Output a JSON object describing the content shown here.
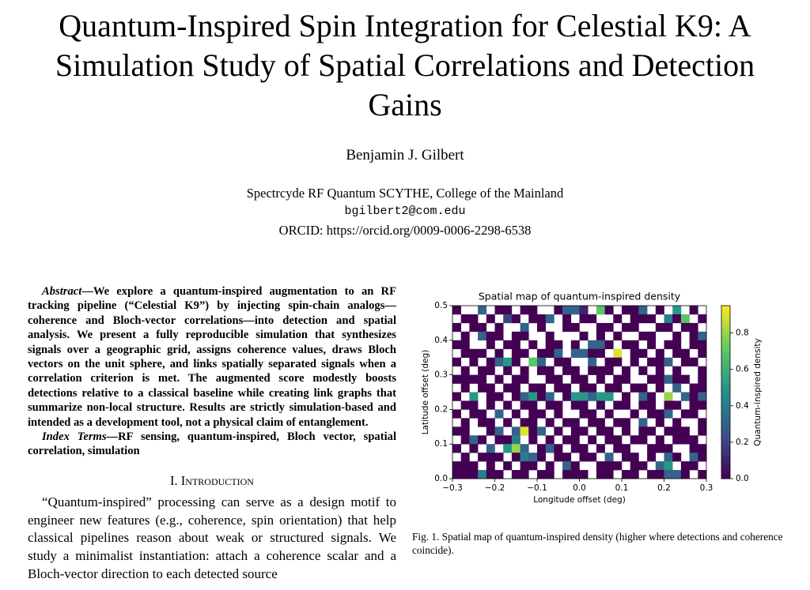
{
  "header": {
    "title": "Quantum-Inspired Spin Integration for Celestial K9: A Simulation Study of Spatial Correlations and Detection Gains",
    "author": "Benjamin J. Gilbert",
    "affiliation": "Spectrcyde RF Quantum SCYTHE, College of the Mainland",
    "email": "bgilbert2@com.edu",
    "orcid": "ORCID: https://orcid.org/0009-0006-2298-6538"
  },
  "abstract": {
    "label": "Abstract",
    "text": "—We explore a quantum-inspired augmentation to an RF tracking pipeline (“Celestial K9”) by injecting spin-chain analogs—coherence and Bloch-vector correlations—into detection and spatial analysis. We present a fully reproducible simulation that synthesizes signals over a geographic grid, assigns coherence values, draws Bloch vectors on the unit sphere, and links spatially separated signals when a correlation criterion is met. The augmented score modestly boosts detections relative to a classical baseline while creating link graphs that summarize non-local structure. Results are strictly simulation-based and intended as a development tool, not a physical claim of entanglement."
  },
  "index_terms": {
    "label": "Index Terms",
    "text": "—RF sensing, quantum-inspired, Bloch vector, spatial correlation, simulation"
  },
  "section": {
    "number": "I.",
    "title": "Introduction"
  },
  "body": "“Quantum-inspired” processing can serve as a design motif to engineer new features (e.g., coherence, spin orientation) that help classical pipelines reason about weak or structured signals. We study a minimalist instantiation: attach a coherence scalar and a Bloch-vector direction to each detected source",
  "chart_data": {
    "type": "heatmap",
    "title": "Spatial map of quantum-inspired density",
    "x_label": "Longitude offset (deg)",
    "y_label": "Latitude offset (deg)",
    "xlim": [
      -0.3,
      0.3
    ],
    "ylim": [
      0,
      0.5
    ],
    "xticks": [
      {
        "value": -0.3,
        "label": "−0.3"
      },
      {
        "value": -0.2,
        "label": "−0.2"
      },
      {
        "value": -0.1,
        "label": "−0.1"
      },
      {
        "value": 0,
        "label": "0.0"
      },
      0.1,
      0.2,
      0.3
    ],
    "yticks": [
      {
        "value": 0,
        "label": "0.0"
      },
      0.1,
      0.2,
      0.3,
      0.4,
      0.5
    ],
    "colormap": "viridis",
    "colorbar_label": "Quantum-inspired density",
    "clim": [
      0,
      0.95
    ],
    "cticks": [
      {
        "value": 0,
        "label": "0.0"
      },
      0.2,
      0.4,
      0.6,
      0.8
    ],
    "values": [
      [
        0,
        null,
        null,
        0.3,
        null,
        0,
        0,
        null,
        0,
        0,
        null,
        null,
        0,
        0.3,
        0.3,
        0.1,
        null,
        0.7,
        0,
        null,
        0,
        0,
        0.3,
        null,
        0,
        null,
        0.5,
        null,
        0,
        null
      ],
      [
        null,
        0,
        0,
        null,
        0,
        null,
        0.2,
        0,
        null,
        0,
        0,
        0.3,
        null,
        0,
        null,
        0,
        0,
        null,
        null,
        0,
        null,
        0,
        0,
        0,
        null,
        0.4,
        0,
        0.7,
        null,
        0
      ],
      [
        0,
        null,
        0,
        0,
        null,
        0,
        null,
        null,
        0.3,
        null,
        0,
        null,
        null,
        0,
        0,
        null,
        null,
        0,
        0,
        null,
        0,
        0,
        null,
        null,
        0,
        0,
        null,
        0,
        0,
        null
      ],
      [
        null,
        0,
        null,
        0.3,
        0,
        0,
        null,
        0,
        0,
        null,
        null,
        0,
        null,
        null,
        null,
        0,
        null,
        0,
        null,
        0,
        null,
        null,
        0,
        0,
        null,
        null,
        0,
        null,
        0,
        0.3
      ],
      [
        0,
        0,
        null,
        null,
        0,
        null,
        0,
        0,
        null,
        0,
        null,
        0,
        0,
        null,
        0,
        null,
        0.3,
        0.3,
        0,
        null,
        0,
        0,
        null,
        0,
        null,
        0,
        0,
        null,
        0,
        0
      ],
      [
        null,
        0,
        0,
        0,
        null,
        0,
        null,
        0,
        0,
        null,
        0,
        0,
        0.3,
        null,
        0.3,
        0.3,
        0,
        0,
        null,
        0.9,
        null,
        0,
        0,
        null,
        0,
        null,
        0,
        0,
        null,
        0
      ],
      [
        0,
        null,
        0,
        null,
        0,
        0.3,
        0.5,
        0,
        null,
        0.7,
        0.3,
        null,
        0,
        0,
        null,
        null,
        0.3,
        null,
        0,
        0,
        null,
        0,
        null,
        0,
        0,
        0.3,
        null,
        0,
        0,
        null
      ],
      [
        null,
        0,
        null,
        0,
        0,
        null,
        0,
        null,
        0,
        null,
        0,
        0,
        null,
        0,
        0,
        null,
        0,
        0,
        0,
        null,
        0,
        null,
        0,
        null,
        0,
        null,
        0,
        null,
        null,
        0
      ],
      [
        0,
        0,
        0,
        0,
        null,
        0,
        null,
        0,
        0,
        null,
        null,
        0,
        0,
        null,
        0,
        0,
        null,
        0,
        null,
        0,
        0,
        null,
        null,
        0,
        0,
        0.3,
        0,
        0,
        null,
        0
      ],
      [
        null,
        0,
        null,
        0,
        0,
        null,
        0,
        0,
        null,
        0,
        0,
        null,
        0,
        0,
        null,
        0,
        0,
        null,
        0,
        0,
        null,
        0,
        0,
        null,
        0,
        null,
        0.3,
        null,
        0,
        0
      ],
      [
        0,
        null,
        0.5,
        null,
        0,
        0,
        null,
        0,
        0.3,
        0.5,
        0,
        0.3,
        null,
        0,
        0.5,
        0.5,
        0.3,
        0.5,
        0.5,
        null,
        0,
        null,
        0.3,
        0,
        null,
        0.8,
        null,
        0.3,
        0,
        0.3
      ],
      [
        null,
        0,
        0,
        null,
        0,
        null,
        0,
        null,
        0,
        0,
        null,
        0,
        0,
        null,
        0,
        0,
        null,
        0,
        null,
        0,
        0,
        null,
        0,
        0,
        null,
        0,
        0,
        null,
        0,
        0
      ],
      [
        0,
        null,
        0,
        0,
        null,
        0.3,
        null,
        0,
        null,
        0,
        0,
        null,
        0,
        null,
        null,
        0,
        0,
        null,
        0,
        null,
        null,
        0,
        null,
        0,
        0,
        0.3,
        null,
        0,
        0,
        null
      ],
      [
        null,
        0,
        null,
        0,
        0,
        null,
        0,
        null,
        0,
        0,
        null,
        0,
        null,
        0,
        0,
        null,
        0,
        0,
        null,
        0,
        0,
        null,
        0.3,
        null,
        0,
        null,
        0,
        null,
        null,
        0
      ],
      [
        0,
        0,
        null,
        null,
        0,
        0.3,
        null,
        0.3,
        0.9,
        0,
        0.3,
        null,
        0,
        null,
        0,
        0,
        null,
        0,
        0,
        null,
        0,
        null,
        0,
        0,
        null,
        0,
        0,
        0,
        null,
        0
      ],
      [
        null,
        0,
        0.3,
        0,
        null,
        0,
        0,
        0.4,
        null,
        0,
        null,
        0,
        null,
        0,
        0,
        null,
        0,
        null,
        0,
        0,
        null,
        0,
        0,
        null,
        0,
        null,
        0,
        0,
        0,
        null
      ],
      [
        0,
        null,
        0,
        null,
        0.3,
        null,
        0.5,
        0.8,
        0.3,
        null,
        0,
        0.3,
        0,
        null,
        0,
        0,
        null,
        0,
        null,
        0,
        0,
        null,
        null,
        0,
        0,
        0,
        null,
        null,
        0,
        0
      ],
      [
        null,
        0,
        null,
        0,
        0,
        0,
        null,
        0,
        0.4,
        0.3,
        0,
        null,
        0,
        0,
        null,
        0,
        0,
        null,
        0.3,
        null,
        0,
        0,
        null,
        0,
        null,
        0.3,
        0,
        null,
        0.3,
        0
      ],
      [
        0,
        0,
        0,
        null,
        0,
        null,
        0,
        null,
        0,
        0,
        null,
        0,
        null,
        0.3,
        0,
        null,
        null,
        0,
        0,
        0,
        null,
        0,
        0,
        null,
        0.3,
        0.5,
        null,
        0,
        0,
        null
      ],
      [
        0,
        0,
        0,
        0.4,
        0,
        0,
        null,
        0,
        0,
        null,
        0,
        0,
        null,
        0,
        0,
        0,
        null,
        0,
        0,
        null,
        0,
        0,
        null,
        0,
        0,
        0.3,
        0.3,
        0,
        null,
        0
      ]
    ]
  },
  "caption": "Fig. 1.  Spatial map of quantum-inspired density (higher where detections and coherence coincide)."
}
